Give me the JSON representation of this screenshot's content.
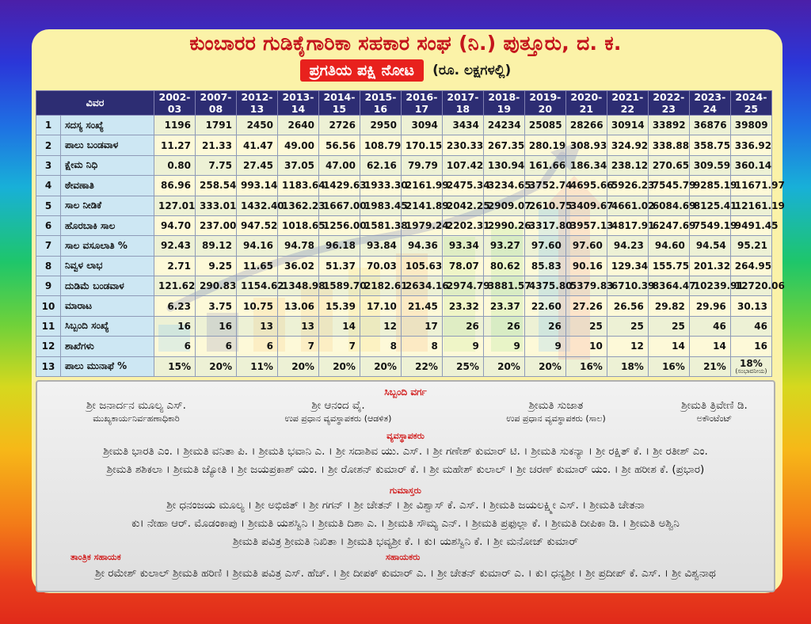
{
  "title": "ಕುಂಬಾರರ ಗುಡಿಕೈಗಾರಿಕಾ ಸಹಕಾರ ಸಂಘ (ನಿ.) ಪುತ್ತೂರು, ದ. ಕ.",
  "subtitle": "ಪ್ರಗತಿಯ ಪಕ್ಷಿ ನೋಟ",
  "unit": "(ರೂ. ಲಕ್ಷಗಳಲ್ಲಿ)",
  "table": {
    "header_label": "ವಿವರ",
    "years": [
      "2002-03",
      "2007-08",
      "2012-13",
      "2013-14",
      "2014-15",
      "2015-16",
      "2016-17",
      "2017-18",
      "2018-19",
      "2019-20",
      "2020-21",
      "2021-22",
      "2022-23",
      "2023-24",
      "2024-25"
    ],
    "rows": [
      {
        "n": "1",
        "label": "ಸದಸ್ಯ ಸಂಖ್ಯೆ",
        "values": [
          "1196",
          "1791",
          "2450",
          "2640",
          "2726",
          "2950",
          "3094",
          "3434",
          "24234",
          "25085",
          "28266",
          "30914",
          "33892",
          "36876",
          "39809"
        ]
      },
      {
        "n": "2",
        "label": "ಪಾಲು ಬಂಡವಾಳ",
        "values": [
          "11.27",
          "21.33",
          "41.47",
          "49.00",
          "56.56",
          "108.79",
          "170.15",
          "230.33",
          "267.35",
          "280.19",
          "308.93",
          "324.92",
          "338.88",
          "358.75",
          "336.92"
        ]
      },
      {
        "n": "3",
        "label": "ಕ್ಷೇಮ ನಿಧಿ",
        "values": [
          "0.80",
          "7.75",
          "27.45",
          "37.05",
          "47.00",
          "62.16",
          "79.79",
          "107.42",
          "130.94",
          "161.66",
          "186.34",
          "238.12",
          "270.65",
          "309.59",
          "360.14"
        ]
      },
      {
        "n": "4",
        "label": "ಠೇವಣಾತಿ",
        "values": [
          "86.96",
          "258.54",
          "993.14",
          "1183.64",
          "1429.63",
          "1933.30",
          "2161.99",
          "2475.34",
          "3234.65",
          "3752.74",
          "4695.66",
          "5926.23",
          "7545.79",
          "9285.19",
          "11671.97"
        ]
      },
      {
        "n": "5",
        "label": "ಸಾಲ ನೀಡಿಕೆ",
        "values": [
          "127.01",
          "333.01",
          "1432.40",
          "1362.23",
          "1667.00",
          "1983.45",
          "2141.89",
          "2042.25",
          "2909.07",
          "2610.75",
          "3409.67",
          "4661.02",
          "6084.69",
          "8125.41",
          "12161.19"
        ]
      },
      {
        "n": "6",
        "label": "ಹೊರಬಾಕಿ ಸಾಲ",
        "values": [
          "94.70",
          "237.00",
          "947.52",
          "1018.65",
          "1256.00",
          "1581.38",
          "1979.24",
          "2202.31",
          "2990.26",
          "3317.80",
          "3957.13",
          "4817.91",
          "6247.69",
          "7549.19",
          "9491.45"
        ]
      },
      {
        "n": "7",
        "label": "ಸಾಲ ವಸೂಲಾತಿ %",
        "values": [
          "92.43",
          "89.12",
          "94.16",
          "94.78",
          "96.18",
          "93.84",
          "94.36",
          "93.34",
          "93.27",
          "97.60",
          "97.60",
          "94.23",
          "94.60",
          "94.54",
          "95.21"
        ]
      },
      {
        "n": "8",
        "label": "ನಿವ್ವಳ ಲಾಭ",
        "values": [
          "2.71",
          "9.25",
          "11.65",
          "36.02",
          "51.37",
          "70.03",
          "105.63",
          "78.07",
          "80.62",
          "85.83",
          "90.16",
          "129.34",
          "155.75",
          "201.32",
          "264.95"
        ]
      },
      {
        "n": "9",
        "label": "ದುಡಿಮೆ ಬಂಡವಾಳ",
        "values": [
          "121.62",
          "290.83",
          "1154.62",
          "1348.98",
          "1589.70",
          "2182.61",
          "2634.16",
          "2974.79",
          "3881.57",
          "4375.80",
          "5379.83",
          "6710.39",
          "8364.47",
          "10239.91",
          "12720.06"
        ]
      },
      {
        "n": "10",
        "label": "ಮಾರಾಟ",
        "values": [
          "6.23",
          "3.75",
          "10.75",
          "13.06",
          "15.39",
          "17.10",
          "21.45",
          "23.32",
          "23.37",
          "22.60",
          "27.26",
          "26.56",
          "29.82",
          "29.96",
          "30.13"
        ]
      },
      {
        "n": "11",
        "label": "ಸಿಬ್ಬಂದಿ ಸಂಖ್ಯೆ",
        "values": [
          "16",
          "16",
          "13",
          "13",
          "14",
          "12",
          "17",
          "26",
          "26",
          "26",
          "25",
          "25",
          "25",
          "46",
          "46"
        ]
      },
      {
        "n": "12",
        "label": "ಶಾಖೆಗಳು",
        "values": [
          "6",
          "6",
          "6",
          "7",
          "7",
          "8",
          "8",
          "9",
          "9",
          "9",
          "10",
          "12",
          "14",
          "14",
          "16"
        ]
      },
      {
        "n": "13",
        "label": "ಪಾಲು ಮುನಾಫೆ %",
        "values": [
          "15%",
          "20%",
          "11%",
          "20%",
          "20%",
          "20%",
          "22%",
          "25%",
          "20%",
          "20%",
          "16%",
          "18%",
          "16%",
          "21%",
          "18%"
        ]
      }
    ],
    "last_note": "(ಸಂಭಾವನೀಯ)"
  },
  "staff": {
    "heading": "ಸಿಬ್ಬಂದಿ ವರ್ಗ",
    "officers": [
      {
        "name": "ಶ್ರೀ ಜನಾರ್ದನ ಮೂಲ್ಯ ಎಸ್.",
        "designation": "ಮುಖ್ಯಕಾರ್ಯನಿರ್ವಹಣಾಧಿಕಾರಿ"
      },
      {
        "name": "ಶ್ರೀ ಆನಂದ ವೈ.",
        "designation": "ಉಪ ಪ್ರಧಾನ ವ್ಯವಸ್ಥಾಪಕರು (ಆಡಳಿತ)"
      },
      {
        "name": "ಶ್ರೀಮತಿ ಸುಜಾತ",
        "designation": "ಉಪ ಪ್ರಧಾನ ವ್ಯವಸ್ಥಾಪಕರು (ಸಾಲ)"
      },
      {
        "name": "ಶ್ರೀಮತಿ ತ್ರಿವೇಣಿ ಡಿ.",
        "designation": "ಅಕೌಂಟೆಂಟ್"
      }
    ],
    "managers_heading": "ವ್ಯವಸ್ಥಾಪಕರು",
    "managers_line1": "ಶ್ರೀಮತಿ ಭಾರತಿ ಎಂ. । ಶ್ರೀಮತಿ ವನಿತಾ ಪಿ. । ಶ್ರೀಮತಿ ಭವಾನಿ ಎ. । ಶ್ರೀ ಸದಾಶಿವ ಯು. ಎಸ್. । ಶ್ರೀ ಗಣೇಶ್ ಕುಮಾರ್ ಟಿ. । ಶ್ರೀಮತಿ ಸುಕನ್ಯಾ । ಶ್ರೀ ರಕ್ಷಿತ್ ಕೆ. । ಶ್ರೀ ರತೀಶ್ ಎಂ.",
    "managers_line2": "ಶ್ರೀಮತಿ ಶಶಿಕಲಾ । ಶ್ರೀಮತಿ ಜ್ಯೋತಿ । ಶ್ರೀ ಜಯಪ್ರಕಾಶ್ ಯಂ. । ಶ್ರೀ ರೋಶನ್ ಕುಮಾರ್ ಕೆ. । ಶ್ರೀ ಮಹೇಶ್ ಕುಲಾಲ್ । ಶ್ರೀ ಚರಣ್ ಕುಮಾರ್ ಯಂ. । ಶ್ರೀ ಹರೀಶ ಕೆ. (ಪ್ರಭಾರ)",
    "clerks_heading": "ಗುಮಾಸ್ತರು",
    "clerks_line1": "ಶ್ರೀ ಧನಂಜಯ ಮೂಲ್ಯ । ಶ್ರೀ ಅಭಿಜಿತ್ । ಶ್ರೀ ಗಗನ್ । ಶ್ರೀ ಚೇತನ್ । ಶ್ರೀ ವಿಶ್ವಾಸ್ ಕೆ. ಎಸ್. । ಶ್ರೀಮತಿ ಜಯಲಕ್ಷ್ಮೀ ಎಸ್. । ಶ್ರೀಮತಿ ಚೇತನಾ",
    "clerks_line2": "ಕು। ನೇಹಾ ಆರ್. ಮೊಡಂಕಾಪು । ಶ್ರೀಮತಿ ಯಶಸ್ವಿನಿ । ಶ್ರೀಮತಿ ದಿಶಾ ಎ. । ಶ್ರೀಮತಿ ಸೌಮ್ಯ ಎನ್. । ಶ್ರೀಮತಿ ಪ್ರಫುಲ್ಲಾ ಕೆ. । ಶ್ರೀಮತಿ ದೀಪಿಕಾ ಡಿ. । ಶ್ರೀಮತಿ ಅಶ್ವಿನಿ",
    "clerks_line3": "ಶ್ರೀಮತಿ ಪವಿತ್ರ ಶ್ರೀಮತಿ ನಿಖಿತಾ । ಶ್ರೀಮತಿ ಭವ್ಯಶ್ರೀ ಕೆ. । ಕು। ಯಶಸ್ವಿನಿ ಕೆ. । ಶ್ರೀ ಮನೋಜ್ ಕುಮಾರ್",
    "tech_assistant_heading": "ತಾಂತ್ರಿಕ ಸಹಾಯಕ",
    "assistants_heading": "ಸಹಾಯಕರು",
    "assistants_line": "ಶ್ರೀ ರಮೇಶ್ ಕುಲಾಲ್ ಶ್ರೀಮತಿ ಹರಿಣಿ । ಶ್ರೀಮತಿ ಪವಿತ್ರ ಎಸ್. ಹೆಚ್. । ಶ್ರೀ ದೀಪಕ್ ಕುಮಾರ್ ಎ. । ಶ್ರೀ ಚೇತನ್ ಕುಮಾರ್ ಎ. । ಕು। ಧನ್ಯಶ್ರೀ । ಶ್ರೀ ಪ್ರದೀಪ್ ಕೆ. ಎಸ್. । ಶ್ರೀ ವಿಶ್ವನಾಥ"
  }
}
